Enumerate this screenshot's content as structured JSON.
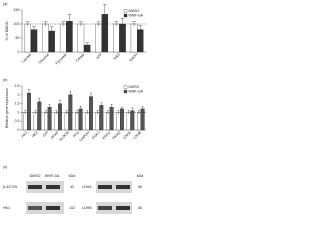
{
  "chart_data": [
    {
      "type": "bar",
      "label": "(a)",
      "y_label": "% of DMSO",
      "categories": [
        "Lactate",
        "Glucose",
        "Pyruvate",
        "Citrate",
        "ATP",
        "NAD",
        "NADH"
      ],
      "series": [
        {
          "name": "DMSO",
          "color": "#ffffff",
          "values": [
            100,
            100,
            100,
            100,
            100,
            100,
            100
          ],
          "errors": [
            8,
            8,
            8,
            8,
            8,
            8,
            8
          ]
        },
        {
          "name": "WNF-GA",
          "color": "#333333",
          "values": [
            80,
            75,
            110,
            25,
            135,
            100,
            80
          ],
          "errors": [
            12,
            15,
            25,
            8,
            35,
            20,
            15
          ]
        }
      ],
      "reference": 100,
      "ylim": [
        0,
        150
      ],
      "yticks": [
        0,
        50,
        100,
        150
      ],
      "legend": "upper right"
    },
    {
      "type": "bar",
      "label": "(b)",
      "y_label": "Relative gene expression",
      "categories": [
        "HK1",
        "HK2",
        "GPI",
        "PFKP",
        "ALDOA",
        "TPI1",
        "GAPDH",
        "PGK1",
        "ENO1",
        "PKM2",
        "LDHA",
        "LDHB"
      ],
      "series": [
        {
          "name": "DMSO",
          "color": "#ffffff",
          "values": [
            1,
            1,
            1,
            1,
            1,
            1,
            1,
            1,
            1,
            1,
            1,
            1
          ],
          "errors": [
            0.1,
            0.1,
            0.1,
            0.1,
            0.1,
            0.1,
            0.1,
            0.1,
            0.1,
            0.1,
            0.1,
            0.1
          ]
        },
        {
          "name": "WNF-GA",
          "color": "#555555",
          "values": [
            2.1,
            1.6,
            1.3,
            1.5,
            2,
            1.2,
            1.9,
            1.4,
            1.3,
            1.2,
            1.1,
            1.2
          ],
          "errors": [
            0.2,
            0.2,
            0.15,
            0.2,
            0.2,
            0.15,
            0.2,
            0.15,
            0.15,
            0.1,
            0.15,
            0.15
          ]
        }
      ],
      "reference": 1,
      "ylim": [
        0,
        2.5
      ],
      "yticks": [
        0,
        0.5,
        1,
        1.5,
        2,
        2.5
      ],
      "legend": "upper right"
    }
  ],
  "blots": {
    "label": "(c)",
    "lanes": [
      "DMSO",
      "WNF-GA"
    ],
    "unit": "kDa",
    "left": [
      {
        "name": "β-ACTIN",
        "kda": 42
      },
      {
        "name": "HK1",
        "kda": 102
      }
    ],
    "right": [
      {
        "name": "LDHA",
        "kda": 36
      },
      {
        "name": "LDHB",
        "kda": 36
      }
    ]
  }
}
